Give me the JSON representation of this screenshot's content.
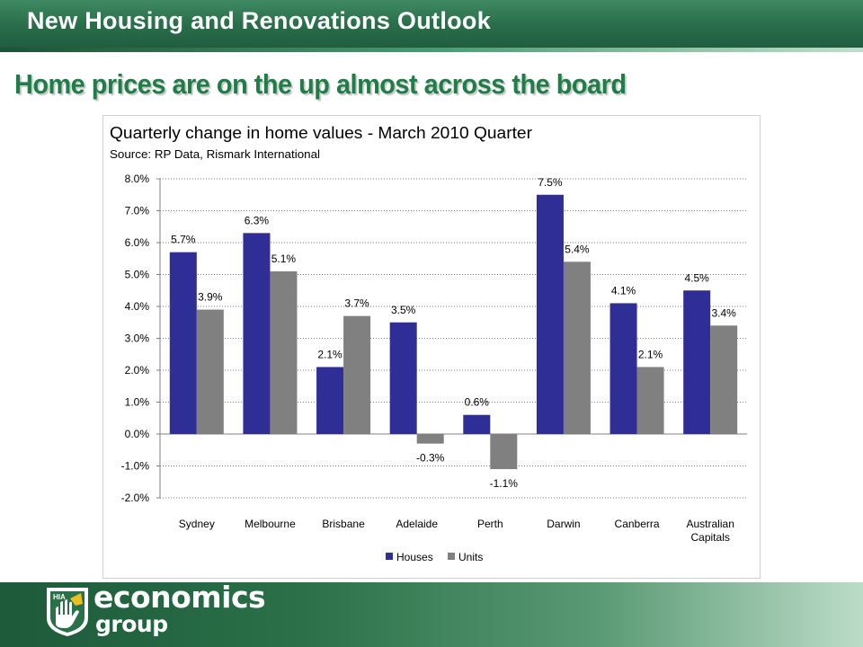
{
  "header": {
    "title": "New Housing and Renovations Outlook"
  },
  "slide": {
    "title": "Home prices are on the up almost across the board"
  },
  "colors": {
    "houses": "#2e2e96",
    "units": "#808080",
    "brand_green": "#1f7d48"
  },
  "logo": {
    "badge": "HIA",
    "line1": "economics",
    "line2": "group"
  },
  "chart_data": {
    "type": "bar",
    "title": "Quarterly change in home values - March 2010 Quarter",
    "subtitle": "Source: RP Data, Rismark International",
    "categories": [
      "Sydney",
      "Melbourne",
      "Brisbane",
      "Adelaide",
      "Perth",
      "Darwin",
      "Canberra",
      "Australian Capitals"
    ],
    "series": [
      {
        "name": "Houses",
        "values": [
          5.7,
          6.3,
          2.1,
          3.5,
          0.6,
          7.5,
          4.1,
          4.5
        ],
        "labels": [
          "5.7%",
          "6.3%",
          "2.1%",
          "3.5%",
          "0.6%",
          "7.5%",
          "4.1%",
          "4.5%"
        ]
      },
      {
        "name": "Units",
        "values": [
          3.9,
          5.1,
          3.7,
          -0.3,
          -1.1,
          5.4,
          2.1,
          3.4
        ],
        "labels": [
          "3.9%",
          "5.1%",
          "3.7%",
          "-0.3%",
          "-1.1%",
          "5.4%",
          "2.1%",
          "3.4%"
        ]
      }
    ],
    "y_ticks": [
      -2,
      -1,
      0,
      1,
      2,
      3,
      4,
      5,
      6,
      7,
      8
    ],
    "y_tick_labels": [
      "-2.0%",
      "-1.0%",
      "0.0%",
      "1.0%",
      "2.0%",
      "3.0%",
      "4.0%",
      "5.0%",
      "6.0%",
      "7.0%",
      "8.0%"
    ],
    "ylim": [
      -2,
      8
    ],
    "grid": true,
    "legend": "bottom"
  }
}
